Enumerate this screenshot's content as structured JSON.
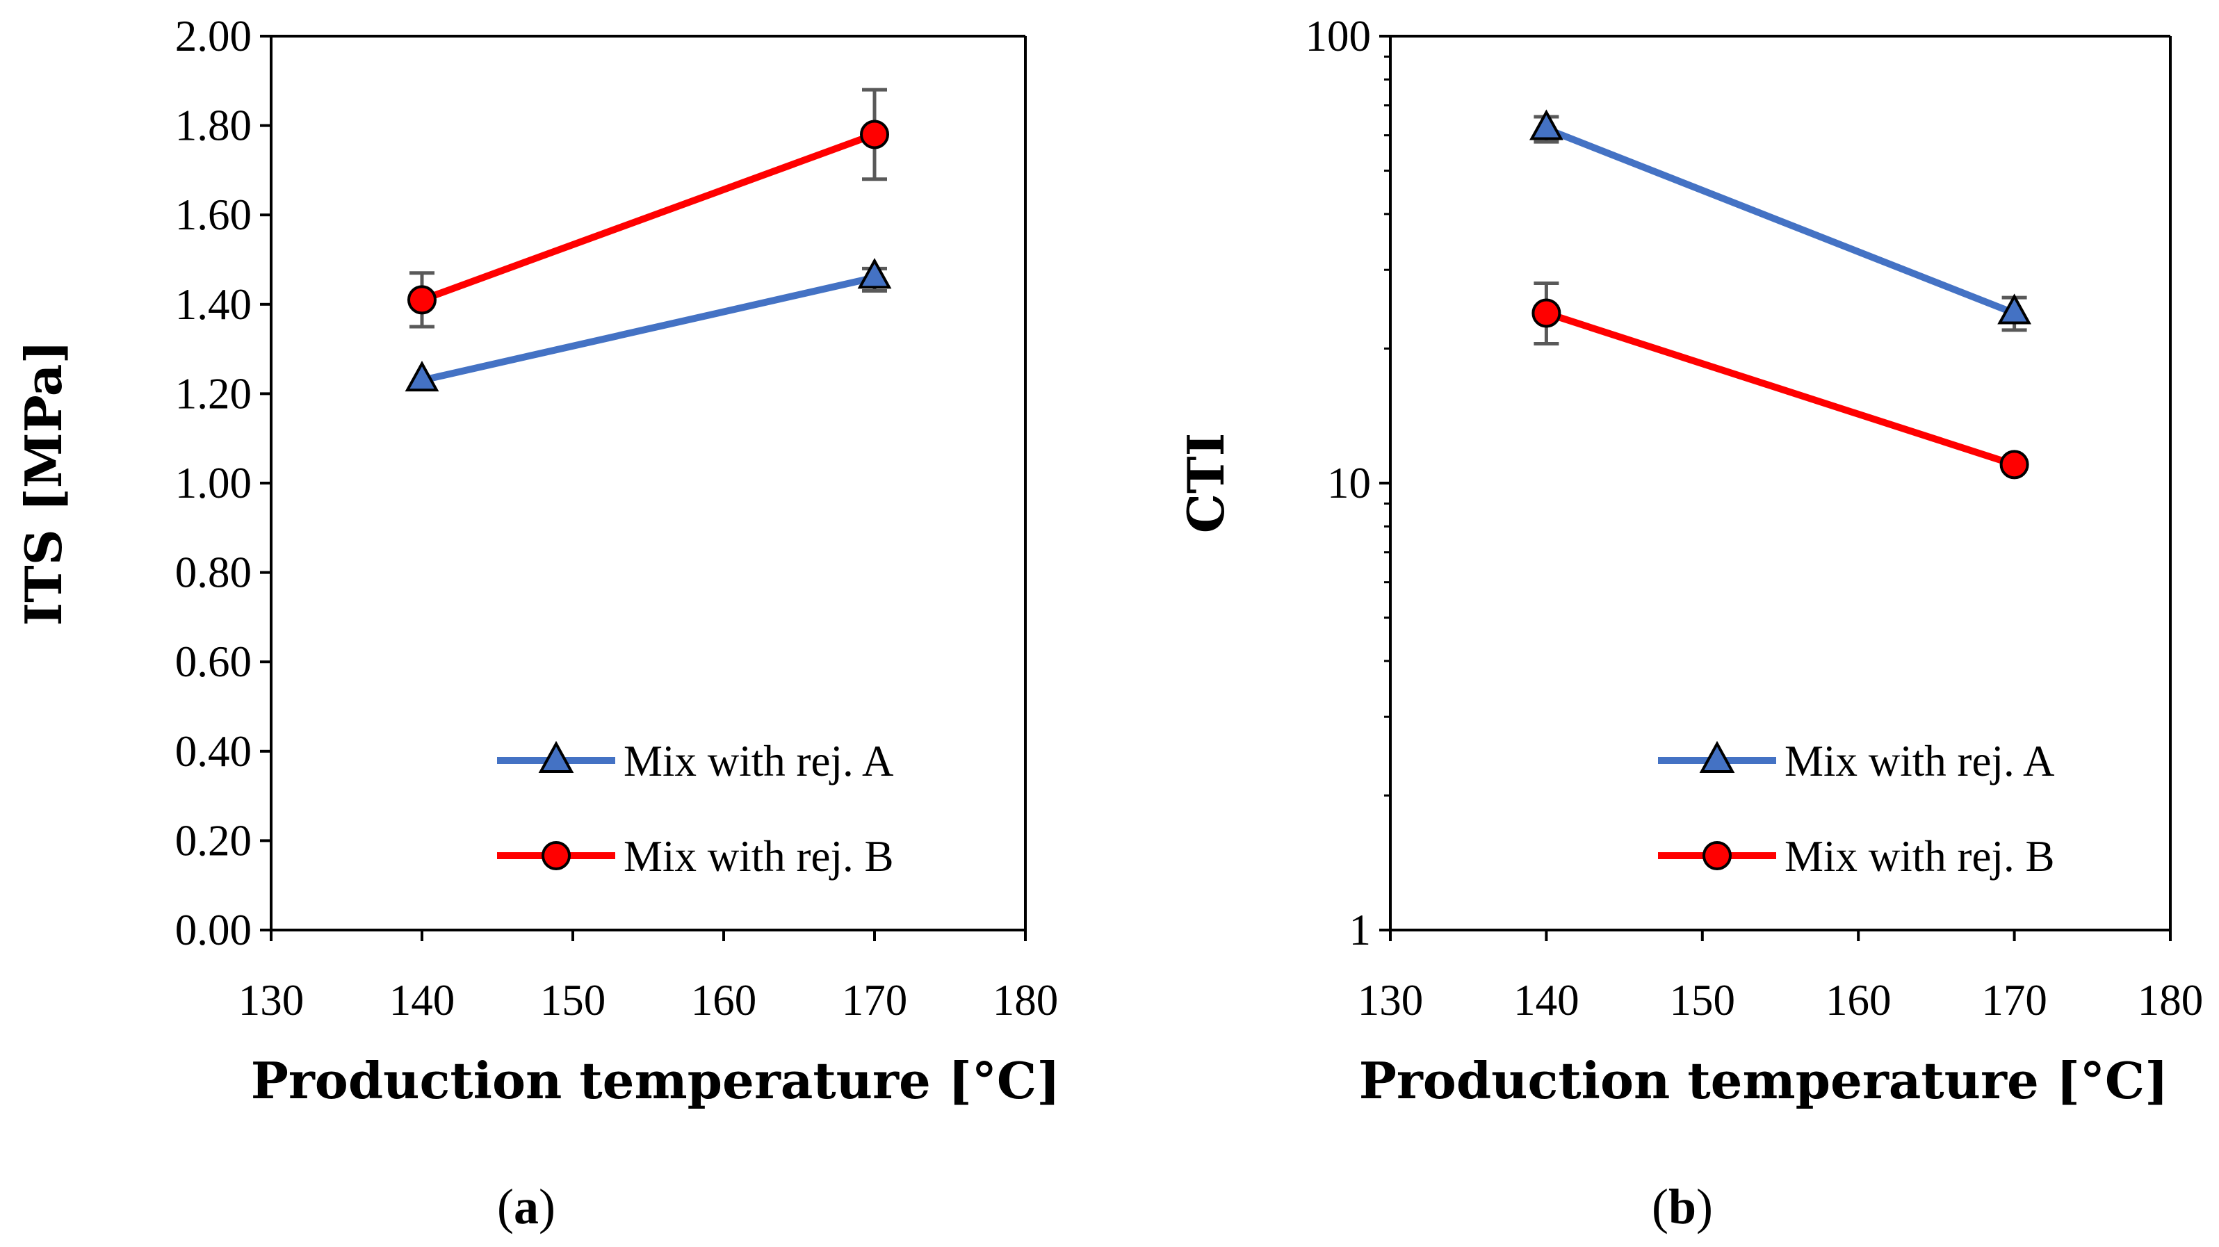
{
  "chart_data": [
    {
      "panel_label": {
        "open": "(",
        "letter": "a",
        "close": ")"
      },
      "type": "line",
      "xlabel": "Production temperature [°C]",
      "ylabel": "ITS [MPa]",
      "xlim": [
        130,
        180
      ],
      "xticks": [
        130,
        140,
        150,
        160,
        170,
        180
      ],
      "xtick_labels": [
        "130",
        "140",
        "150",
        "160",
        "170",
        "180"
      ],
      "ylim": [
        0,
        2
      ],
      "yscale": "linear",
      "yticks": [
        0,
        0.2,
        0.4,
        0.6,
        0.8,
        1.0,
        1.2,
        1.4,
        1.6,
        1.8,
        2.0
      ],
      "ytick_labels": [
        "0.00",
        "0.20",
        "0.40",
        "0.60",
        "0.80",
        "1.00",
        "1.20",
        "1.40",
        "1.60",
        "1.80",
        "2.00"
      ],
      "legend_position": "bottom-right",
      "series": [
        {
          "name": "Mix with rej. A",
          "color": "#4472C4",
          "marker": "triangle",
          "x": [
            140,
            170
          ],
          "values": [
            1.23,
            1.46
          ],
          "err_low": [
            1.23,
            1.43
          ],
          "err_high": [
            1.23,
            1.48
          ]
        },
        {
          "name": "Mix with rej. B",
          "color": "#FF0000",
          "marker": "circle",
          "x": [
            140,
            170
          ],
          "values": [
            1.41,
            1.78
          ],
          "err_low": [
            1.35,
            1.68
          ],
          "err_high": [
            1.47,
            1.88
          ]
        }
      ]
    },
    {
      "panel_label": {
        "open": "(",
        "letter": "b",
        "close": ")"
      },
      "type": "line",
      "xlabel": "Production temperature [°C]",
      "ylabel": "CTI",
      "xlim": [
        130,
        180
      ],
      "xticks": [
        130,
        140,
        150,
        160,
        170,
        180
      ],
      "xtick_labels": [
        "130",
        "140",
        "150",
        "160",
        "170",
        "180"
      ],
      "ylim": [
        1,
        100
      ],
      "yscale": "log",
      "yticks": [
        1,
        10,
        100
      ],
      "ytick_labels": [
        "1",
        "10",
        "100"
      ],
      "legend_position": "bottom-right",
      "series": [
        {
          "name": "Mix with rej. A",
          "color": "#4472C4",
          "marker": "triangle",
          "x": [
            140,
            170
          ],
          "values": [
            62,
            24
          ],
          "err_low": [
            58,
            22
          ],
          "err_high": [
            66,
            26
          ]
        },
        {
          "name": "Mix with rej. B",
          "color": "#FF0000",
          "marker": "circle",
          "x": [
            140,
            170
          ],
          "values": [
            24,
            11
          ],
          "err_low": [
            20.5,
            11
          ],
          "err_high": [
            28,
            11
          ]
        }
      ]
    }
  ]
}
